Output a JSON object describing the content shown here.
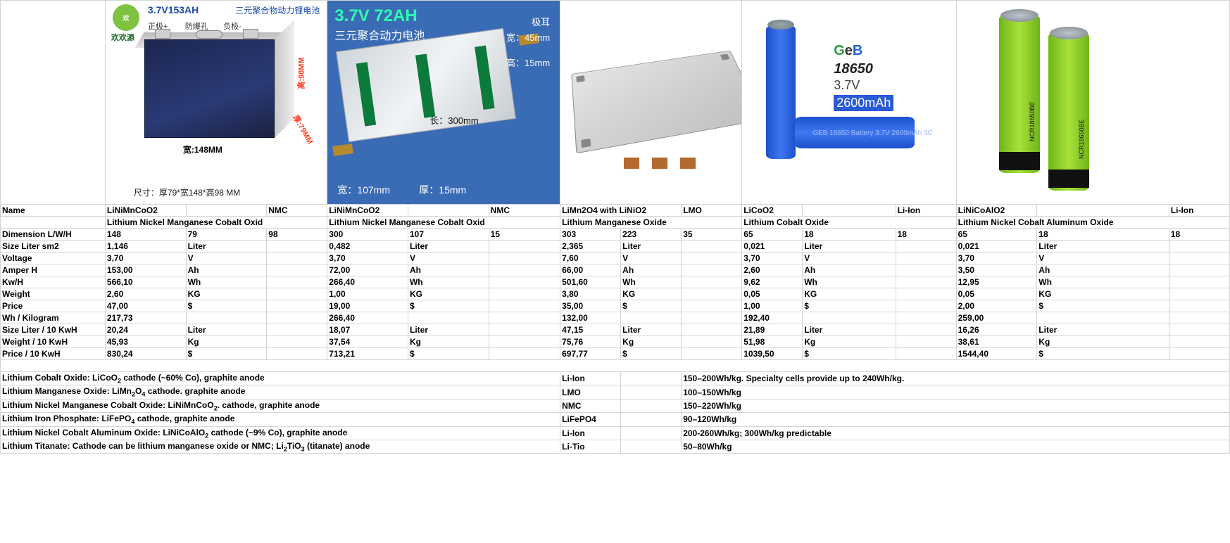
{
  "images": {
    "p1": {
      "title": "3.7V153AH",
      "subtitle": "三元聚合物动力锂电池",
      "logo_sub": "欢欢源",
      "pos_label": "正极+",
      "vent_label": "防爆孔",
      "neg_label": "负极-",
      "dim_h": "高:98MM",
      "dim_d": "厚:79MM",
      "dim_w": "宽:148MM",
      "footer": "尺寸：厚79*宽148*高98  MM"
    },
    "p2": {
      "title": "3.7V 72AH",
      "subtitle": "三元聚合动力电池",
      "tab_label": "极耳",
      "width_tab": "宽：45mm",
      "height_tab": "高：15mm",
      "length": "长：300mm",
      "foot_w": "宽：107mm",
      "foot_t": "厚：15mm"
    },
    "p4": {
      "brand_g": "G",
      "brand_e": "e",
      "brand_b": "B",
      "model": "18650",
      "voltage": "3.7V",
      "capacity": "2600mAh",
      "cell_text": "GEB 18650 Battery   3.7V 2600mAh 3C"
    },
    "p5": {
      "label1": "NCR18650BE",
      "label2": "NCR18650BE"
    }
  },
  "headers": {
    "name": "Name",
    "dim": "Dimension L/W/H",
    "size": "Size Liter sm2",
    "voltage": "Voltage",
    "amper": "Amper H",
    "kwh": "Kw/H",
    "weight": "Weight",
    "price": "Price",
    "whkg": "Wh / Kilogram",
    "sl10": "Size Liter / 10 KwH",
    "w10": "Weight / 10 KwH",
    "p10": "Price / 10 KwH"
  },
  "units": {
    "liter": "Liter",
    "v": "V",
    "ah": "Ah",
    "wh": "Wh",
    "kg_u": "KG",
    "dollar": "$",
    "kg_l": "Kg"
  },
  "batt": [
    {
      "chem": "LiNiMnCoO2",
      "type": "NMC",
      "chem_full": "Lithium Nickel Manganese Cobalt Oxid",
      "L": "148",
      "W": "79",
      "H": "98",
      "size": "1,146",
      "v": "3,70",
      "ah": "153,00",
      "wh": "566,10",
      "kg": "2,60",
      "price": "47,00",
      "whkg": "217,73",
      "sl10": "20,24",
      "w10": "45,93",
      "p10": "830,24"
    },
    {
      "chem": "LiNiMnCoO2",
      "type": "NMC",
      "chem_full": "Lithium Nickel Manganese Cobalt Oxid",
      "L": "300",
      "W": "107",
      "H": "15",
      "size": "0,482",
      "v": "3,70",
      "ah": "72,00",
      "wh": "266,40",
      "kg": "1,00",
      "price": "19,00",
      "whkg": "266,40",
      "sl10": "18,07",
      "w10": "37,54",
      "p10": "713,21"
    },
    {
      "chem": "LiMn2O4 with LiNiO2",
      "type": "LMO",
      "chem_full": "Lithium Manganese Oxide",
      "L": "303",
      "W": "223",
      "H": "35",
      "size": "2,365",
      "v": "7,60",
      "ah": "66,00",
      "wh": "501,60",
      "kg": "3,80",
      "price": "35,00",
      "whkg": "132,00",
      "sl10": "47,15",
      "w10": "75,76",
      "p10": "697,77"
    },
    {
      "chem": "LiCoO2",
      "type": "Li-Ion",
      "chem_full": "Lithium Cobalt Oxide",
      "L": "65",
      "W": "18",
      "H": "18",
      "size": "0,021",
      "v": "3,70",
      "ah": "2,60",
      "wh": "9,62",
      "kg": "0,05",
      "price": "1,00",
      "whkg": "192,40",
      "sl10": "21,89",
      "w10": "51,98",
      "p10": "1039,50"
    },
    {
      "chem": "LiNiCoAlO2",
      "type": "Li-Ion",
      "chem_full": "Lithium Nickel Cobalt Aluminum Oxide",
      "L": "65",
      "W": "18",
      "H": "18",
      "size": "0,021",
      "v": "3,70",
      "ah": "3,50",
      "wh": "12,95",
      "kg": "0,05",
      "price": "2,00",
      "whkg": "259,00",
      "sl10": "16,26",
      "w10": "38,61",
      "p10": "1544,40"
    }
  ],
  "notes": [
    {
      "desc": "Lithium Cobalt Oxide: LiCoO₂ cathode (~60% Co), graphite anode",
      "type": "Li-Ion",
      "spec": "150–200Wh/kg. Specialty cells provide up to 240Wh/kg."
    },
    {
      "desc": "Lithium Manganese Oxide: LiMn₂O₄ cathode. graphite anode",
      "type": "LMO",
      "spec": "100–150Wh/kg"
    },
    {
      "desc": "Lithium Nickel Manganese Cobalt Oxide: LiNiMnCoO₂. cathode, graphite anode",
      "type": "NMC",
      "spec": "150–220Wh/kg"
    },
    {
      "desc": "Lithium Iron Phosphate: LiFePO₄ cathode, graphite anode",
      "type": "LiFePO4",
      "spec": "90–120Wh/kg"
    },
    {
      "desc": "Lithium Nickel Cobalt Aluminum Oxide: LiNiCoAlO₂ cathode (~9% Co), graphite anode",
      "type": "Li-Ion",
      "spec": "200-260Wh/kg; 300Wh/kg predictable"
    },
    {
      "desc": "Lithium Titanate: Cathode can be lithium manganese oxide or NMC; Li₂TiO₃ (titanate) anode",
      "type": "Li-Tio",
      "spec": "50–80Wh/kg"
    }
  ],
  "style": {
    "grid_color": "#d4d4d4",
    "bg": "#ffffff",
    "font_size": 12,
    "bold_weight": "bold"
  }
}
